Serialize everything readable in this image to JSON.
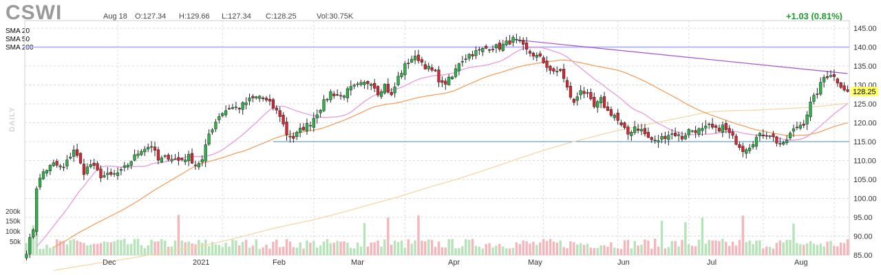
{
  "header": {
    "ticker": "CSWI",
    "date": "Aug 18",
    "open": "O:127.34",
    "high": "H:129.66",
    "low": "L:127.34",
    "close": "C:128.25",
    "volume": "Vol:30.75K",
    "change": "+1.03 (0.81%)",
    "timeframe": "DAILY"
  },
  "colors": {
    "up": "#2fb14a",
    "down": "#d6262f",
    "sma20": "#e79ad9",
    "sma50": "#f2a05f",
    "sma200": "#f6d7a6",
    "hline_top": "#b7b7ff",
    "hline_support": "#3d8ec7",
    "trendline": "#a44fd2",
    "last_price_bg": "#ffff66"
  },
  "legend": [
    {
      "name": "SMA 20",
      "color": "#e79ad9"
    },
    {
      "name": "SMA 50",
      "color": "#f2a05f"
    },
    {
      "name": "SMA 200",
      "color": "#f6d7a6"
    }
  ],
  "volume_axis_labels": [
    "200k",
    "150k",
    "100k",
    "50k"
  ],
  "last_price": "128.25",
  "chart_data": {
    "type": "candlestick",
    "x_labels": [
      "Dec",
      "2021",
      "Feb",
      "Mar",
      "Apr",
      "May",
      "Jun",
      "Jul",
      "Aug"
    ],
    "y_ticks": [
      85.0,
      90.0,
      95.0,
      100.0,
      105.0,
      110.0,
      115.0,
      120.0,
      125.0,
      130.0,
      135.0,
      140.0,
      145.0
    ],
    "y_tick_labels": [
      "85.00",
      "90.00",
      "95.00",
      "100.00",
      "105.00",
      "110.00",
      "115.00",
      "120.00",
      "125.00",
      "130.00",
      "135.00",
      "140.00",
      "145.00"
    ],
    "ylim": [
      85,
      147
    ],
    "grid": true,
    "close_anchors": [
      [
        0,
        86
      ],
      [
        2,
        92
      ],
      [
        3,
        103
      ],
      [
        5,
        107
      ],
      [
        8,
        109
      ],
      [
        11,
        108
      ],
      [
        14,
        113
      ],
      [
        17,
        107
      ],
      [
        19,
        109
      ],
      [
        22,
        106
      ],
      [
        25,
        106
      ],
      [
        28,
        107
      ],
      [
        31,
        110
      ],
      [
        34,
        113
      ],
      [
        37,
        114
      ],
      [
        39,
        110
      ],
      [
        42,
        111
      ],
      [
        45,
        110
      ],
      [
        48,
        111
      ],
      [
        50,
        109
      ],
      [
        52,
        110
      ],
      [
        54,
        117
      ],
      [
        57,
        122
      ],
      [
        60,
        124
      ],
      [
        63,
        124
      ],
      [
        66,
        126
      ],
      [
        69,
        127
      ],
      [
        72,
        125
      ],
      [
        75,
        122
      ],
      [
        77,
        117
      ],
      [
        79,
        116
      ],
      [
        81,
        118
      ],
      [
        84,
        120
      ],
      [
        87,
        124
      ],
      [
        90,
        128
      ],
      [
        93,
        127
      ],
      [
        96,
        129
      ],
      [
        99,
        130
      ],
      [
        102,
        131
      ],
      [
        104,
        128
      ],
      [
        106,
        130
      ],
      [
        108,
        127
      ],
      [
        110,
        132
      ],
      [
        112,
        135
      ],
      [
        114,
        137
      ],
      [
        116,
        137
      ],
      [
        118,
        135
      ],
      [
        121,
        133
      ],
      [
        123,
        130
      ],
      [
        126,
        132
      ],
      [
        128,
        136
      ],
      [
        131,
        138
      ],
      [
        134,
        139
      ],
      [
        137,
        140
      ],
      [
        140,
        140
      ],
      [
        142,
        141
      ],
      [
        144,
        142
      ],
      [
        146,
        141
      ],
      [
        148,
        139
      ],
      [
        150,
        138
      ],
      [
        152,
        137
      ],
      [
        154,
        135
      ],
      [
        156,
        133
      ],
      [
        158,
        134
      ],
      [
        160,
        129
      ],
      [
        162,
        125
      ],
      [
        164,
        129
      ],
      [
        166,
        127
      ],
      [
        168,
        124
      ],
      [
        170,
        126
      ],
      [
        172,
        123
      ],
      [
        174,
        122
      ],
      [
        176,
        119
      ],
      [
        178,
        117
      ],
      [
        180,
        119
      ],
      [
        182,
        118
      ],
      [
        184,
        116
      ],
      [
        186,
        115
      ],
      [
        188,
        116
      ],
      [
        190,
        117
      ],
      [
        192,
        117
      ],
      [
        194,
        116
      ],
      [
        196,
        118
      ],
      [
        198,
        118
      ],
      [
        200,
        118
      ],
      [
        202,
        119
      ],
      [
        204,
        118
      ],
      [
        206,
        119
      ],
      [
        208,
        117
      ],
      [
        210,
        115
      ],
      [
        212,
        113
      ],
      [
        214,
        114
      ],
      [
        216,
        116
      ],
      [
        218,
        117
      ],
      [
        220,
        117
      ],
      [
        222,
        115
      ],
      [
        224,
        114
      ],
      [
        226,
        117
      ],
      [
        228,
        119
      ],
      [
        230,
        120
      ],
      [
        232,
        125
      ],
      [
        234,
        128
      ],
      [
        236,
        132
      ],
      [
        238,
        133
      ],
      [
        240,
        131
      ],
      [
        242,
        129
      ],
      [
        243,
        128.25
      ]
    ],
    "horizontal_lines": [
      140,
      115
    ],
    "trendline": [
      [
        144,
        142
      ],
      [
        243,
        133
      ]
    ],
    "series": [
      {
        "name": "SMA 20"
      },
      {
        "name": "SMA 50"
      },
      {
        "name": "SMA 200"
      }
    ]
  }
}
